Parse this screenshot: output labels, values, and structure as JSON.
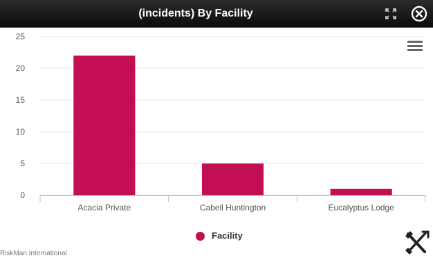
{
  "window": {
    "title": "(incidents) By Facility",
    "maximize_icon": "expand-arrows-icon",
    "close_icon": "circle-x-icon",
    "menu_icon": "hamburger-menu-icon"
  },
  "chart_data": {
    "type": "bar",
    "categories": [
      "Acacia Private",
      "Cabell Huntington",
      "Eucalyptus Lodge"
    ],
    "series": [
      {
        "name": "Facility",
        "values": [
          22,
          5,
          1
        ],
        "color": "#c30e53"
      }
    ],
    "ylim": [
      0,
      25
    ],
    "yticks": [
      "0",
      "5",
      "10",
      "15",
      "20",
      "25"
    ],
    "grid": true,
    "legend": "bottom-center"
  },
  "footer": {
    "credit": "RiskMan International",
    "tools_icon": "hammer-wrench-icon"
  },
  "colors": {
    "bar": "#c30e53",
    "titlebar": "#111111",
    "grid": "#e6e6e6"
  }
}
